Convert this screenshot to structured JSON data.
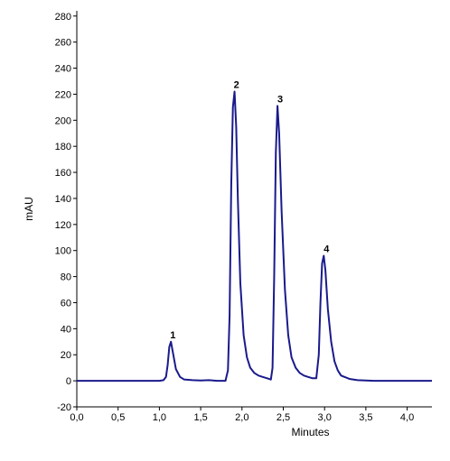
{
  "chart_data": {
    "type": "line",
    "xlabel": "Minutes",
    "ylabel": "mAU",
    "xlim": [
      0.0,
      4.3
    ],
    "ylim": [
      -20,
      284
    ],
    "x_ticks": [
      0.0,
      0.5,
      1.0,
      1.5,
      2.0,
      2.5,
      3.0,
      3.5,
      4.0
    ],
    "x_tick_labels": [
      "0,0",
      "0,5",
      "1,0",
      "1,5",
      "2,0",
      "2,5",
      "3,0",
      "3,5",
      "4,0"
    ],
    "y_ticks": [
      -20,
      0,
      20,
      40,
      60,
      80,
      100,
      120,
      140,
      160,
      180,
      200,
      220,
      240,
      260,
      280
    ],
    "y_tick_labels": [
      "-20",
      "0",
      "20",
      "40",
      "60",
      "80",
      "100",
      "120",
      "140",
      "160",
      "180",
      "200",
      "220",
      "240",
      "260",
      "280"
    ],
    "grid": false,
    "series": [
      {
        "color": "#1a1a8c",
        "x": [
          0.0,
          0.5,
          1.0,
          1.05,
          1.08,
          1.1,
          1.12,
          1.14,
          1.16,
          1.2,
          1.25,
          1.3,
          1.4,
          1.5,
          1.6,
          1.7,
          1.8,
          1.83,
          1.85,
          1.87,
          1.89,
          1.91,
          1.93,
          1.95,
          1.98,
          2.02,
          2.06,
          2.1,
          2.15,
          2.2,
          2.25,
          2.3,
          2.35,
          2.37,
          2.39,
          2.41,
          2.43,
          2.45,
          2.48,
          2.52,
          2.56,
          2.6,
          2.65,
          2.7,
          2.75,
          2.8,
          2.85,
          2.9,
          2.93,
          2.95,
          2.97,
          2.99,
          3.01,
          3.04,
          3.08,
          3.12,
          3.16,
          3.2,
          3.3,
          3.4,
          3.6,
          3.8,
          4.0,
          4.3
        ],
        "y": [
          0,
          0,
          0,
          0.5,
          3,
          12,
          26,
          30,
          23,
          9,
          3,
          1,
          0.5,
          0.3,
          0.5,
          0,
          0,
          8,
          50,
          150,
          210,
          222,
          195,
          140,
          75,
          35,
          18,
          10,
          6,
          4,
          3,
          2,
          1,
          10,
          80,
          175,
          211,
          190,
          130,
          70,
          35,
          18,
          10,
          6,
          4,
          3,
          2,
          2,
          20,
          60,
          90,
          96,
          85,
          55,
          30,
          15,
          8,
          4,
          1.5,
          0.5,
          0,
          0,
          0,
          0
        ]
      }
    ],
    "peaks": [
      {
        "label": "1",
        "x": 1.13,
        "y": 30
      },
      {
        "label": "2",
        "x": 1.9,
        "y": 222
      },
      {
        "label": "3",
        "x": 2.43,
        "y": 211
      },
      {
        "label": "4",
        "x": 2.99,
        "y": 96
      }
    ]
  }
}
